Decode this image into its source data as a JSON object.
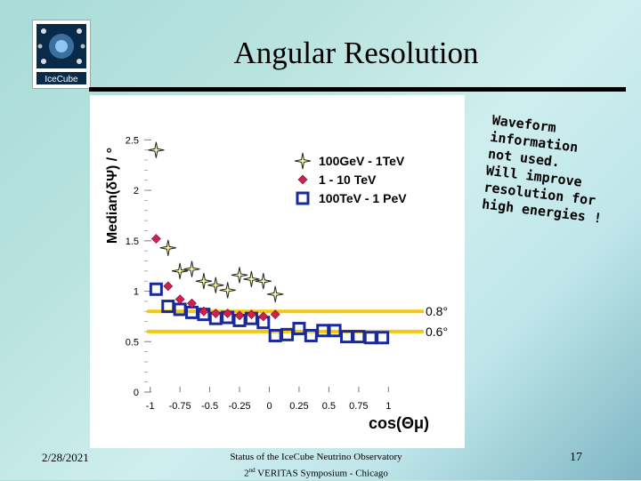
{
  "slide": {
    "title": "Angular Resolution",
    "date": "2/28/2021",
    "footer_line1": "Status of the IceCube Neutrino Observatory",
    "footer_line2_sup": "nd",
    "footer_line2_prefix": "2",
    "footer_line2_rest": " VERITAS Symposium - Chicago",
    "page_number": "17",
    "logo_text": "IceCube"
  },
  "callout": {
    "lines": [
      "Waveform",
      "information",
      "not used.",
      "Will improve",
      "resolution for",
      "high energies !"
    ]
  },
  "reference_lines": {
    "color": "#f2c811",
    "values": [
      0.8,
      0.6
    ],
    "labels": [
      "0.8°",
      "0.6°"
    ]
  },
  "chart_data": {
    "type": "scatter",
    "xlabel": "cos(Θμ)",
    "ylabel": "Median(δΨ) / °",
    "xlim": [
      -1.05,
      1.05
    ],
    "ylim": [
      0,
      2.6
    ],
    "xticks": [
      -1,
      -0.75,
      -0.5,
      -0.25,
      0,
      0.25,
      0.5,
      0.75,
      1
    ],
    "xtick_labels": [
      "-1",
      "-0.75",
      "-0.5",
      "-0.25",
      "0",
      "0.25",
      "0.5",
      "0.75",
      "1"
    ],
    "yticks": [
      0,
      0.5,
      1,
      1.5,
      2,
      2.5
    ],
    "ytick_labels": [
      "0",
      "0.5",
      "1",
      "1.5",
      "2",
      "2.5"
    ],
    "legend_position": "top-right",
    "series": [
      {
        "name": "100GeV - 1TeV",
        "marker": "star",
        "color": "#222222",
        "fill": "#ffffaa",
        "x": [
          -0.95,
          -0.85,
          -0.75,
          -0.65,
          -0.55,
          -0.45,
          -0.35,
          -0.25,
          -0.15,
          -0.05,
          0.05
        ],
        "y": [
          2.4,
          1.43,
          1.2,
          1.22,
          1.1,
          1.06,
          1.01,
          1.16,
          1.12,
          1.1,
          0.97
        ]
      },
      {
        "name": "1 - 10 TeV",
        "marker": "diamond",
        "color": "#d02050",
        "x": [
          -0.95,
          -0.85,
          -0.75,
          -0.65,
          -0.55,
          -0.45,
          -0.35,
          -0.25,
          -0.15,
          -0.05,
          0.05
        ],
        "y": [
          1.52,
          1.05,
          0.92,
          0.88,
          0.8,
          0.78,
          0.78,
          0.76,
          0.77,
          0.75,
          0.77
        ]
      },
      {
        "name": "100TeV - 1 PeV",
        "marker": "square",
        "color": "#1a2a9a",
        "x": [
          -0.95,
          -0.85,
          -0.75,
          -0.65,
          -0.55,
          -0.45,
          -0.35,
          -0.25,
          -0.15,
          -0.05,
          0.05,
          0.15,
          0.25,
          0.35,
          0.45,
          0.55,
          0.65,
          0.75,
          0.85,
          0.95
        ],
        "y": [
          1.02,
          0.85,
          0.82,
          0.79,
          0.77,
          0.73,
          0.74,
          0.71,
          0.73,
          0.69,
          0.56,
          0.57,
          0.63,
          0.56,
          0.61,
          0.61,
          0.55,
          0.55,
          0.54,
          0.54
        ]
      }
    ]
  }
}
